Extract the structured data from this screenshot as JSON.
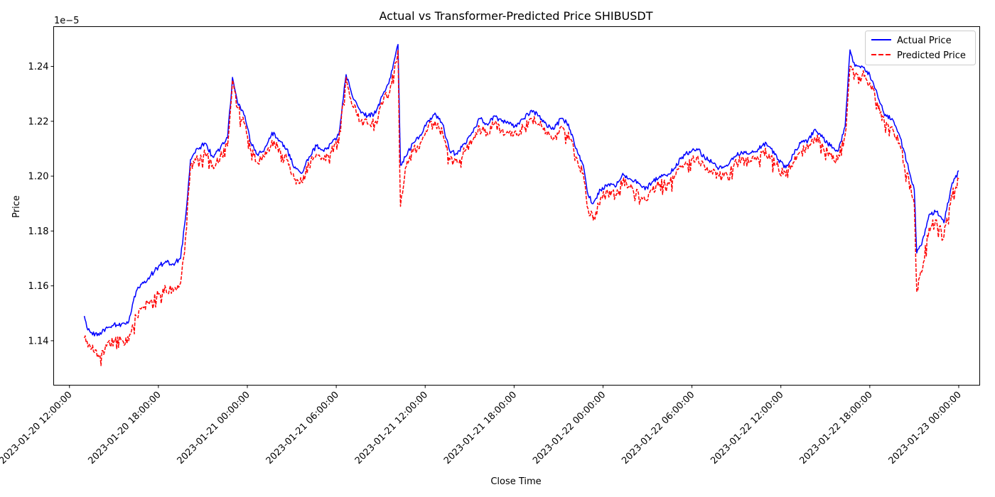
{
  "chart_data": {
    "type": "line",
    "title": "Actual vs Transformer-Predicted Price SHIBUSDT",
    "xlabel": "Close Time",
    "ylabel": "Price",
    "offset_label": "1e−5",
    "y_scale_multiplier": 1e-05,
    "grid": false,
    "legend_position": "top-right",
    "xlim": [
      "2023-01-20 10:56:00",
      "2023-01-23 01:25:00"
    ],
    "ylim": [
      1.1238,
      1.2545
    ],
    "x_ticks": [
      "2023-01-20 12:00:00",
      "2023-01-20 18:00:00",
      "2023-01-21 00:00:00",
      "2023-01-21 06:00:00",
      "2023-01-21 12:00:00",
      "2023-01-21 18:00:00",
      "2023-01-22 00:00:00",
      "2023-01-22 06:00:00",
      "2023-01-22 12:00:00",
      "2023-01-22 18:00:00",
      "2023-01-23 00:00:00"
    ],
    "y_ticks": [
      "1.14",
      "1.16",
      "1.18",
      "1.20",
      "1.22",
      "1.24"
    ],
    "series": [
      {
        "name": "Actual Price",
        "color": "#0000ff",
        "style": "solid",
        "points": [
          [
            "2023-01-20 13:00",
            1.149
          ],
          [
            "2023-01-20 13:10",
            1.145
          ],
          [
            "2023-01-20 13:30",
            1.143
          ],
          [
            "2023-01-20 14:00",
            1.142
          ],
          [
            "2023-01-20 14:30",
            1.145
          ],
          [
            "2023-01-20 15:00",
            1.146
          ],
          [
            "2023-01-20 15:30",
            1.146
          ],
          [
            "2023-01-20 16:00",
            1.147
          ],
          [
            "2023-01-20 16:30",
            1.158
          ],
          [
            "2023-01-20 17:00",
            1.161
          ],
          [
            "2023-01-20 17:30",
            1.164
          ],
          [
            "2023-01-20 18:00",
            1.167
          ],
          [
            "2023-01-20 18:30",
            1.169
          ],
          [
            "2023-01-20 19:00",
            1.168
          ],
          [
            "2023-01-20 19:30",
            1.17
          ],
          [
            "2023-01-20 19:50",
            1.185
          ],
          [
            "2023-01-20 20:10",
            1.206
          ],
          [
            "2023-01-20 20:40",
            1.21
          ],
          [
            "2023-01-20 21:10",
            1.212
          ],
          [
            "2023-01-20 21:40",
            1.207
          ],
          [
            "2023-01-20 22:10",
            1.21
          ],
          [
            "2023-01-20 22:40",
            1.214
          ],
          [
            "2023-01-20 23:00",
            1.236
          ],
          [
            "2023-01-20 23:20",
            1.227
          ],
          [
            "2023-01-20 23:50",
            1.222
          ],
          [
            "2023-01-21 00:15",
            1.212
          ],
          [
            "2023-01-21 00:40",
            1.208
          ],
          [
            "2023-01-21 01:10",
            1.21
          ],
          [
            "2023-01-21 01:40",
            1.216
          ],
          [
            "2023-01-21 02:10",
            1.213
          ],
          [
            "2023-01-21 02:40",
            1.21
          ],
          [
            "2023-01-21 03:10",
            1.203
          ],
          [
            "2023-01-21 03:40",
            1.201
          ],
          [
            "2023-01-21 04:10",
            1.207
          ],
          [
            "2023-01-21 04:40",
            1.211
          ],
          [
            "2023-01-21 05:10",
            1.209
          ],
          [
            "2023-01-21 05:40",
            1.212
          ],
          [
            "2023-01-21 06:10",
            1.215
          ],
          [
            "2023-01-21 06:40",
            1.237
          ],
          [
            "2023-01-21 07:10",
            1.228
          ],
          [
            "2023-01-21 07:40",
            1.223
          ],
          [
            "2023-01-21 08:10",
            1.222
          ],
          [
            "2023-01-21 08:40",
            1.223
          ],
          [
            "2023-01-21 09:10",
            1.23
          ],
          [
            "2023-01-21 09:40",
            1.236
          ],
          [
            "2023-01-21 10:10",
            1.248
          ],
          [
            "2023-01-21 10:20",
            1.204
          ],
          [
            "2023-01-21 10:40",
            1.207
          ],
          [
            "2023-01-21 11:10",
            1.212
          ],
          [
            "2023-01-21 11:40",
            1.215
          ],
          [
            "2023-01-21 12:10",
            1.22
          ],
          [
            "2023-01-21 12:40",
            1.223
          ],
          [
            "2023-01-21 13:10",
            1.219
          ],
          [
            "2023-01-21 13:40",
            1.209
          ],
          [
            "2023-01-21 14:10",
            1.208
          ],
          [
            "2023-01-21 14:40",
            1.212
          ],
          [
            "2023-01-21 15:10",
            1.216
          ],
          [
            "2023-01-21 15:40",
            1.221
          ],
          [
            "2023-01-21 16:10",
            1.219
          ],
          [
            "2023-01-21 16:40",
            1.222
          ],
          [
            "2023-01-21 17:10",
            1.22
          ],
          [
            "2023-01-21 17:40",
            1.219
          ],
          [
            "2023-01-21 18:10",
            1.218
          ],
          [
            "2023-01-21 18:40",
            1.221
          ],
          [
            "2023-01-21 19:10",
            1.224
          ],
          [
            "2023-01-21 19:40",
            1.222
          ],
          [
            "2023-01-21 20:10",
            1.219
          ],
          [
            "2023-01-21 20:40",
            1.217
          ],
          [
            "2023-01-21 21:10",
            1.221
          ],
          [
            "2023-01-21 21:40",
            1.219
          ],
          [
            "2023-01-21 22:10",
            1.21
          ],
          [
            "2023-01-21 22:40",
            1.204
          ],
          [
            "2023-01-21 23:00",
            1.193
          ],
          [
            "2023-01-21 23:20",
            1.19
          ],
          [
            "2023-01-21 23:50",
            1.195
          ],
          [
            "2023-01-22 00:20",
            1.197
          ],
          [
            "2023-01-22 00:50",
            1.196
          ],
          [
            "2023-01-22 01:20",
            1.201
          ],
          [
            "2023-01-22 01:50",
            1.199
          ],
          [
            "2023-01-22 02:20",
            1.198
          ],
          [
            "2023-01-22 02:50",
            1.195
          ],
          [
            "2023-01-22 03:20",
            1.198
          ],
          [
            "2023-01-22 03:50",
            1.2
          ],
          [
            "2023-01-22 04:20",
            1.2
          ],
          [
            "2023-01-22 04:50",
            1.203
          ],
          [
            "2023-01-22 05:20",
            1.207
          ],
          [
            "2023-01-22 05:50",
            1.209
          ],
          [
            "2023-01-22 06:20",
            1.21
          ],
          [
            "2023-01-22 06:50",
            1.207
          ],
          [
            "2023-01-22 07:20",
            1.205
          ],
          [
            "2023-01-22 07:50",
            1.203
          ],
          [
            "2023-01-22 08:20",
            1.204
          ],
          [
            "2023-01-22 08:50",
            1.207
          ],
          [
            "2023-01-22 09:20",
            1.209
          ],
          [
            "2023-01-22 09:50",
            1.208
          ],
          [
            "2023-01-22 10:20",
            1.209
          ],
          [
            "2023-01-22 10:50",
            1.212
          ],
          [
            "2023-01-22 11:20",
            1.21
          ],
          [
            "2023-01-22 11:50",
            1.206
          ],
          [
            "2023-01-22 12:20",
            1.203
          ],
          [
            "2023-01-22 12:50",
            1.208
          ],
          [
            "2023-01-22 13:20",
            1.212
          ],
          [
            "2023-01-22 13:50",
            1.213
          ],
          [
            "2023-01-22 14:20",
            1.217
          ],
          [
            "2023-01-22 14:50",
            1.214
          ],
          [
            "2023-01-22 15:20",
            1.211
          ],
          [
            "2023-01-22 15:50",
            1.209
          ],
          [
            "2023-01-22 16:20",
            1.218
          ],
          [
            "2023-01-22 16:40",
            1.246
          ],
          [
            "2023-01-22 17:00",
            1.24
          ],
          [
            "2023-01-22 17:30",
            1.24
          ],
          [
            "2023-01-22 18:00",
            1.237
          ],
          [
            "2023-01-22 18:30",
            1.23
          ],
          [
            "2023-01-22 19:00",
            1.222
          ],
          [
            "2023-01-22 19:30",
            1.221
          ],
          [
            "2023-01-22 20:00",
            1.215
          ],
          [
            "2023-01-22 20:30",
            1.205
          ],
          [
            "2023-01-22 21:00",
            1.195
          ],
          [
            "2023-01-22 21:10",
            1.172
          ],
          [
            "2023-01-22 21:30",
            1.175
          ],
          [
            "2023-01-22 22:00",
            1.186
          ],
          [
            "2023-01-22 22:30",
            1.187
          ],
          [
            "2023-01-22 23:00",
            1.183
          ],
          [
            "2023-01-22 23:30",
            1.196
          ],
          [
            "2023-01-23 00:00",
            1.202
          ]
        ]
      },
      {
        "name": "Predicted Price",
        "color": "#ff0000",
        "style": "dashed",
        "points": [
          [
            "2023-01-20 13:00",
            1.141
          ],
          [
            "2023-01-20 13:30",
            1.137
          ],
          [
            "2023-01-20 14:00",
            1.134
          ],
          [
            "2023-01-20 14:30",
            1.138
          ],
          [
            "2023-01-20 15:00",
            1.14
          ],
          [
            "2023-01-20 15:30",
            1.14
          ],
          [
            "2023-01-20 16:00",
            1.14
          ],
          [
            "2023-01-20 16:30",
            1.149
          ],
          [
            "2023-01-20 17:00",
            1.152
          ],
          [
            "2023-01-20 17:30",
            1.155
          ],
          [
            "2023-01-20 18:00",
            1.157
          ],
          [
            "2023-01-20 18:30",
            1.159
          ],
          [
            "2023-01-20 19:00",
            1.158
          ],
          [
            "2023-01-20 19:30",
            1.161
          ],
          [
            "2023-01-20 19:50",
            1.178
          ],
          [
            "2023-01-20 20:10",
            1.204
          ],
          [
            "2023-01-20 20:40",
            1.206
          ],
          [
            "2023-01-20 21:10",
            1.208
          ],
          [
            "2023-01-20 21:40",
            1.204
          ],
          [
            "2023-01-20 22:10",
            1.207
          ],
          [
            "2023-01-20 22:40",
            1.211
          ],
          [
            "2023-01-20 23:00",
            1.235
          ],
          [
            "2023-01-20 23:20",
            1.225
          ],
          [
            "2023-01-20 23:50",
            1.219
          ],
          [
            "2023-01-21 00:15",
            1.209
          ],
          [
            "2023-01-21 00:40",
            1.205
          ],
          [
            "2023-01-21 01:10",
            1.207
          ],
          [
            "2023-01-21 01:40",
            1.213
          ],
          [
            "2023-01-21 02:10",
            1.21
          ],
          [
            "2023-01-21 02:40",
            1.206
          ],
          [
            "2023-01-21 03:10",
            1.199
          ],
          [
            "2023-01-21 03:40",
            1.198
          ],
          [
            "2023-01-21 04:10",
            1.204
          ],
          [
            "2023-01-21 04:40",
            1.208
          ],
          [
            "2023-01-21 05:10",
            1.206
          ],
          [
            "2023-01-21 05:40",
            1.209
          ],
          [
            "2023-01-21 06:10",
            1.212
          ],
          [
            "2023-01-21 06:40",
            1.236
          ],
          [
            "2023-01-21 07:10",
            1.225
          ],
          [
            "2023-01-21 07:40",
            1.22
          ],
          [
            "2023-01-21 08:10",
            1.219
          ],
          [
            "2023-01-21 08:40",
            1.22
          ],
          [
            "2023-01-21 09:10",
            1.227
          ],
          [
            "2023-01-21 09:40",
            1.233
          ],
          [
            "2023-01-21 10:10",
            1.246
          ],
          [
            "2023-01-21 10:20",
            1.189
          ],
          [
            "2023-01-21 10:40",
            1.203
          ],
          [
            "2023-01-21 11:10",
            1.209
          ],
          [
            "2023-01-21 11:40",
            1.212
          ],
          [
            "2023-01-21 12:10",
            1.217
          ],
          [
            "2023-01-21 12:40",
            1.22
          ],
          [
            "2023-01-21 13:10",
            1.216
          ],
          [
            "2023-01-21 13:40",
            1.206
          ],
          [
            "2023-01-21 14:10",
            1.205
          ],
          [
            "2023-01-21 14:40",
            1.209
          ],
          [
            "2023-01-21 15:10",
            1.213
          ],
          [
            "2023-01-21 15:40",
            1.218
          ],
          [
            "2023-01-21 16:10",
            1.216
          ],
          [
            "2023-01-21 16:40",
            1.219
          ],
          [
            "2023-01-21 17:10",
            1.217
          ],
          [
            "2023-01-21 17:40",
            1.216
          ],
          [
            "2023-01-21 18:10",
            1.215
          ],
          [
            "2023-01-21 18:40",
            1.218
          ],
          [
            "2023-01-21 19:10",
            1.221
          ],
          [
            "2023-01-21 19:40",
            1.219
          ],
          [
            "2023-01-21 20:10",
            1.216
          ],
          [
            "2023-01-21 20:40",
            1.214
          ],
          [
            "2023-01-21 21:10",
            1.218
          ],
          [
            "2023-01-21 21:40",
            1.216
          ],
          [
            "2023-01-21 22:10",
            1.207
          ],
          [
            "2023-01-21 22:40",
            1.201
          ],
          [
            "2023-01-21 23:00",
            1.188
          ],
          [
            "2023-01-21 23:20",
            1.184
          ],
          [
            "2023-01-21 23:50",
            1.192
          ],
          [
            "2023-01-22 00:20",
            1.194
          ],
          [
            "2023-01-22 00:50",
            1.193
          ],
          [
            "2023-01-22 01:20",
            1.198
          ],
          [
            "2023-01-22 01:50",
            1.196
          ],
          [
            "2023-01-22 02:20",
            1.195
          ],
          [
            "2023-01-22 02:50",
            1.191
          ],
          [
            "2023-01-22 03:20",
            1.195
          ],
          [
            "2023-01-22 03:50",
            1.197
          ],
          [
            "2023-01-22 04:20",
            1.197
          ],
          [
            "2023-01-22 04:50",
            1.2
          ],
          [
            "2023-01-22 05:20",
            1.204
          ],
          [
            "2023-01-22 05:50",
            1.206
          ],
          [
            "2023-01-22 06:20",
            1.207
          ],
          [
            "2023-01-22 06:50",
            1.204
          ],
          [
            "2023-01-22 07:20",
            1.202
          ],
          [
            "2023-01-22 07:50",
            1.2
          ],
          [
            "2023-01-22 08:20",
            1.201
          ],
          [
            "2023-01-22 08:50",
            1.204
          ],
          [
            "2023-01-22 09:20",
            1.206
          ],
          [
            "2023-01-22 09:50",
            1.205
          ],
          [
            "2023-01-22 10:20",
            1.206
          ],
          [
            "2023-01-22 10:50",
            1.209
          ],
          [
            "2023-01-22 11:20",
            1.207
          ],
          [
            "2023-01-22 11:50",
            1.203
          ],
          [
            "2023-01-22 12:20",
            1.2
          ],
          [
            "2023-01-22 12:50",
            1.205
          ],
          [
            "2023-01-22 13:20",
            1.209
          ],
          [
            "2023-01-22 13:50",
            1.21
          ],
          [
            "2023-01-22 14:20",
            1.214
          ],
          [
            "2023-01-22 14:50",
            1.211
          ],
          [
            "2023-01-22 15:20",
            1.208
          ],
          [
            "2023-01-22 15:50",
            1.206
          ],
          [
            "2023-01-22 16:20",
            1.215
          ],
          [
            "2023-01-22 16:40",
            1.24
          ],
          [
            "2023-01-22 17:00",
            1.237
          ],
          [
            "2023-01-22 17:30",
            1.237
          ],
          [
            "2023-01-22 18:00",
            1.234
          ],
          [
            "2023-01-22 18:30",
            1.227
          ],
          [
            "2023-01-22 19:00",
            1.219
          ],
          [
            "2023-01-22 19:30",
            1.218
          ],
          [
            "2023-01-22 20:00",
            1.212
          ],
          [
            "2023-01-22 20:30",
            1.201
          ],
          [
            "2023-01-22 21:00",
            1.19
          ],
          [
            "2023-01-22 21:10",
            1.158
          ],
          [
            "2023-01-22 21:30",
            1.165
          ],
          [
            "2023-01-22 22:00",
            1.181
          ],
          [
            "2023-01-22 22:30",
            1.184
          ],
          [
            "2023-01-22 23:00",
            1.178
          ],
          [
            "2023-01-22 23:30",
            1.193
          ],
          [
            "2023-01-23 00:00",
            1.199
          ]
        ]
      }
    ]
  }
}
